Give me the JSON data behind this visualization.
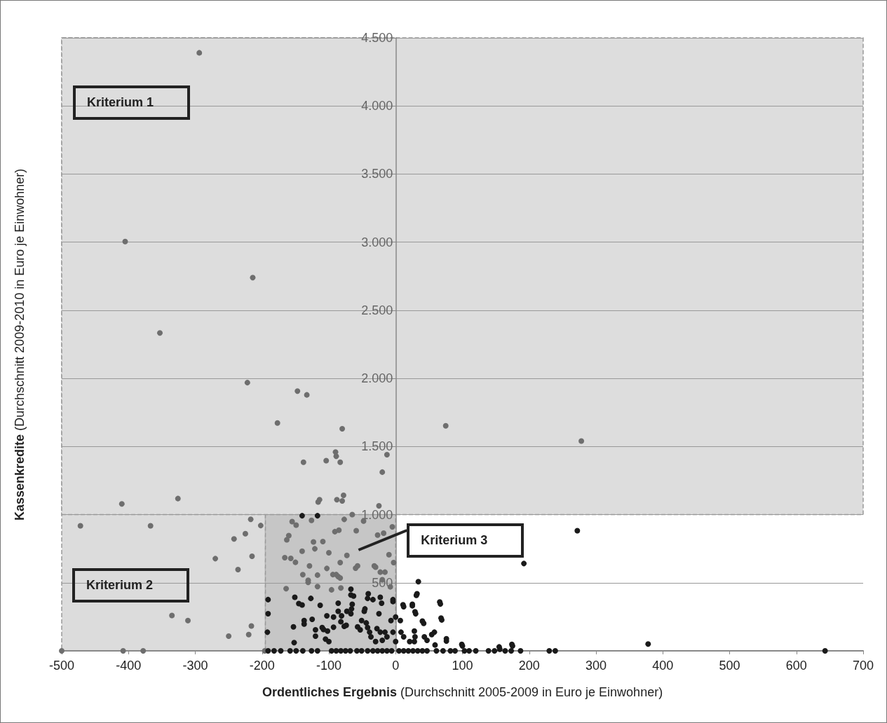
{
  "chart_data": {
    "type": "scatter",
    "xlabel": "Ordentliches Ergebnis (Durchschnitt 2005-2009 in Euro je Einwohner)",
    "ylabel": "Kassenkredite  (Durchschnitt 2009-2010 in Euro je Einwohner)",
    "marker": "circle",
    "grid": "y",
    "xlim": [
      -500,
      700
    ],
    "xticks": [
      -500,
      -400,
      -300,
      -200,
      -100,
      0,
      100,
      200,
      300,
      400,
      500,
      600,
      700
    ],
    "ylim": [
      0,
      4500
    ],
    "yticks": [
      {
        "value": 0,
        "label": null
      },
      500,
      {
        "value": 1000,
        "label": "1.000"
      },
      {
        "value": 1500,
        "label": "1.500"
      },
      {
        "value": 2000,
        "label": "2.000"
      },
      {
        "value": 2500,
        "label": "2.500"
      },
      {
        "value": 3000,
        "label": "3.000"
      },
      {
        "value": 3500,
        "label": "3.500"
      },
      {
        "value": 4000,
        "label": "4.000"
      },
      {
        "value": 4500,
        "label": "4.500"
      }
    ],
    "bands": [
      {
        "axis": "x",
        "from": -500,
        "to": -195,
        "label": "Kriterium 2",
        "color": "#dcdcdc"
      },
      {
        "axis": "x",
        "from": -195,
        "to": 0,
        "label": "Kriterium 3",
        "color": "#c6c6c6"
      },
      {
        "axis": "y",
        "from": 1000,
        "to": 4500,
        "label": "Kriterium 1",
        "color": "#dddddd"
      }
    ],
    "series": [
      {
        "color": "#6e6e6e",
        "x": [
          -294,
          -405,
          -214,
          -353,
          -222,
          -147,
          -133,
          -177,
          -80,
          -90,
          -89,
          -83,
          -138,
          -104,
          -13,
          -20,
          -410,
          -326,
          -114,
          -116,
          -88,
          -80,
          -78,
          -25,
          -65,
          75,
          278,
          -217,
          -472,
          -367,
          -202,
          -225,
          -242,
          -270,
          -215,
          -236,
          -335,
          -311,
          -216,
          -220,
          -250,
          -500,
          -408,
          -378,
          -196,
          -155,
          -149,
          -126,
          -77,
          -48,
          -5,
          -163,
          -160,
          -166,
          -157,
          -150,
          -140,
          -129,
          -123,
          -121,
          -109,
          -100,
          -103,
          -139,
          -131,
          -131,
          -117,
          -117,
          -164,
          -96,
          -94,
          -89,
          -86,
          -83,
          -83,
          -82,
          -91,
          -85,
          -73,
          -59,
          -60,
          -57,
          -32,
          -30,
          -27,
          -18,
          -23,
          -16,
          -20,
          -10,
          -8,
          -3
        ],
        "values": [
          4390,
          3005,
          2740,
          2334,
          1969,
          1907,
          1879,
          1673,
          1630,
          1459,
          1428,
          1385,
          1385,
          1396,
          1440,
          1312,
          1079,
          1118,
          1110,
          1093,
          1110,
          1101,
          1142,
          1065,
          1000,
          1652,
          1540,
          966,
          918,
          918,
          920,
          860,
          822,
          677,
          694,
          597,
          260,
          222,
          183,
          120,
          108,
          0,
          0,
          0,
          0,
          949,
          923,
          958,
          965,
          953,
          910,
          815,
          846,
          684,
          679,
          650,
          732,
          624,
          800,
          749,
          802,
          720,
          605,
          559,
          518,
          503,
          556,
          472,
          456,
          448,
          560,
          560,
          545,
          535,
          648,
          462,
          875,
          886,
          701,
          882,
          607,
          624,
          624,
          615,
          850,
          864,
          578,
          578,
          522,
          706,
          470,
          648
        ]
      },
      {
        "color": "#1a1a1a",
        "x": [
          -140,
          -117,
          272,
          192,
          378,
          643,
          34,
          -67,
          -191,
          -182,
          -172,
          -158,
          -149,
          -139,
          -126,
          -117,
          -96,
          -89,
          -82,
          -75,
          -68,
          -58,
          -51,
          -42,
          -34,
          -27,
          -20,
          -13,
          -6,
          5,
          12,
          19,
          26,
          33,
          40,
          47,
          61,
          71,
          82,
          89,
          103,
          110,
          120,
          139,
          148,
          164,
          173,
          187,
          230,
          239,
          -191,
          -191,
          -192,
          -151,
          -145,
          -140,
          -127,
          -113,
          -137,
          -137,
          -153,
          -152,
          -125,
          -120,
          -110,
          -108,
          -120,
          -103,
          -93,
          -102,
          -105,
          -100,
          -86,
          -86,
          -81,
          -73,
          -93,
          -82,
          -77,
          -74,
          -67,
          -63,
          -65,
          -66,
          -67,
          -57,
          -53,
          -51,
          -44,
          -42,
          -41,
          -42,
          -34,
          -23,
          -21,
          -25,
          -47,
          -46,
          -39,
          -37,
          -28,
          -23,
          -16,
          -30,
          -20,
          -13,
          -7,
          0,
          7,
          -4,
          0,
          8,
          12,
          -4,
          11,
          25,
          29,
          32,
          28,
          29,
          28,
          21,
          40,
          43,
          47,
          54,
          58,
          59,
          66,
          68,
          76,
          99,
          155,
          174,
          31,
          67,
          69,
          42,
          100,
          156,
          175,
          76,
          12,
          25,
          30,
          -4
        ],
        "values": [
          992,
          992,
          882,
          641,
          50,
          0,
          508,
          453,
          0,
          0,
          0,
          0,
          0,
          0,
          0,
          0,
          0,
          0,
          0,
          0,
          0,
          0,
          0,
          0,
          0,
          0,
          0,
          0,
          0,
          0,
          0,
          0,
          0,
          0,
          0,
          0,
          0,
          0,
          0,
          0,
          0,
          0,
          0,
          0,
          0,
          0,
          0,
          0,
          0,
          0,
          376,
          273,
          137,
          393,
          347,
          337,
          385,
          334,
          222,
          197,
          176,
          60,
          231,
          154,
          171,
          157,
          108,
          257,
          248,
          145,
          86,
          68,
          350,
          291,
          257,
          291,
          174,
          214,
          180,
          188,
          410,
          402,
          342,
          308,
          273,
          176,
          154,
          222,
          205,
          171,
          419,
          385,
          376,
          393,
          350,
          273,
          291,
          308,
          137,
          103,
          163,
          137,
          137,
          68,
          77,
          103,
          222,
          248,
          222,
          137,
          68,
          137,
          103,
          376,
          338,
          342,
          287,
          419,
          145,
          103,
          68,
          68,
          219,
          103,
          77,
          120,
          137,
          43,
          359,
          240,
          89,
          48,
          29,
          48,
          408,
          344,
          227,
          202,
          36,
          12,
          36,
          72,
          324,
          331,
          272,
          362
        ]
      }
    ]
  }
}
